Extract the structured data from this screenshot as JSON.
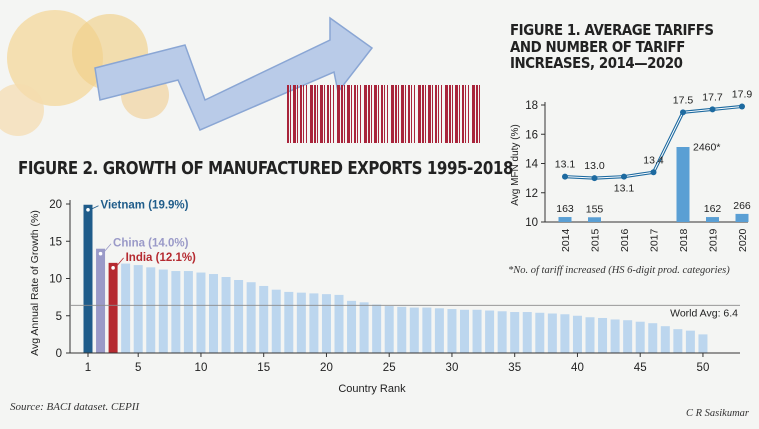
{
  "colors": {
    "bar_default": "#bcd6ee",
    "vietnam": "#1f5c8a",
    "china": "#9a9ac8",
    "india": "#b52a30",
    "tariff_line": "#1d6aa0",
    "increase_bar": "#5a9fd4",
    "text": "#222222"
  },
  "figure2": {
    "title": "FIGURE 2. GROWTH OF MANUFACTURED EXPORTS 1995-2018",
    "source": "Source: BACI dataset. CEPII"
  },
  "figure1": {
    "title_lines": [
      "FIGURE 1. AVERAGE TARIFFS",
      "AND NUMBER OF TARIFF",
      "INCREASES, 2014—2020"
    ],
    "footnote": "*No. of tariff increased (HS 6-digit prod. categories)"
  },
  "credit": "C R Sasikumar",
  "chart_data": [
    {
      "type": "bar",
      "title": "FIGURE 2. GROWTH OF MANUFACTURED EXPORTS 1995-2018",
      "xlabel": "Country Rank",
      "ylabel": "Avg Annual Rate of Growth (%)",
      "ylim": [
        0,
        20
      ],
      "yticks": [
        0,
        5,
        10,
        15,
        20
      ],
      "xticks": [
        1,
        5,
        10,
        15,
        20,
        25,
        30,
        35,
        40,
        45,
        50
      ],
      "x": [
        1,
        2,
        3,
        4,
        5,
        6,
        7,
        8,
        9,
        10,
        11,
        12,
        13,
        14,
        15,
        16,
        17,
        18,
        19,
        20,
        21,
        22,
        23,
        24,
        25,
        26,
        27,
        28,
        29,
        30,
        31,
        32,
        33,
        34,
        35,
        36,
        37,
        38,
        39,
        40,
        41,
        42,
        43,
        44,
        45,
        46,
        47,
        48,
        49,
        50
      ],
      "values": [
        19.9,
        14.0,
        12.1,
        12.0,
        11.8,
        11.5,
        11.2,
        11.0,
        11.0,
        10.8,
        10.6,
        10.2,
        9.8,
        9.5,
        9.0,
        8.5,
        8.2,
        8.1,
        8.0,
        7.9,
        7.8,
        7.0,
        6.8,
        6.5,
        6.3,
        6.2,
        6.1,
        6.1,
        6.0,
        5.9,
        5.8,
        5.8,
        5.7,
        5.6,
        5.5,
        5.5,
        5.4,
        5.3,
        5.2,
        5.0,
        4.8,
        4.7,
        4.5,
        4.4,
        4.2,
        4.0,
        3.6,
        3.2,
        3.0,
        2.5
      ],
      "highlights": [
        {
          "rank": 1,
          "label": "Vietnam (19.9%)",
          "color": "#1f5c8a"
        },
        {
          "rank": 2,
          "label": "China (14.0%)",
          "color": "#9a9ac8"
        },
        {
          "rank": 3,
          "label": "India (12.1%)",
          "color": "#b52a30"
        }
      ],
      "reference_line": {
        "value": 6.4,
        "label": "World Avg: 6.4"
      }
    },
    {
      "type": "line",
      "title": "FIGURE 1. AVERAGE TARIFFS AND NUMBER OF TARIFF INCREASES, 2014—2020",
      "ylabel": "Avg MFN duty (%)",
      "ylim": [
        10,
        18
      ],
      "yticks": [
        10,
        12,
        14,
        16,
        18
      ],
      "x": [
        "2014",
        "2015",
        "2016",
        "2017",
        "2018",
        "2019",
        "2020"
      ],
      "series": [
        {
          "values": [
            13.1,
            13.0,
            13.1,
            13.4,
            17.5,
            17.7,
            17.9
          ],
          "labels": [
            "13.1",
            "13.0",
            "13.1",
            "13.4",
            "17.5",
            "17.7",
            "17.9"
          ]
        }
      ],
      "increases": {
        "values": [
          163,
          155,
          0,
          0,
          2460,
          162,
          266
        ],
        "labels": [
          "163",
          "155",
          "",
          "",
          "2460*",
          "162",
          "266"
        ]
      }
    }
  ]
}
